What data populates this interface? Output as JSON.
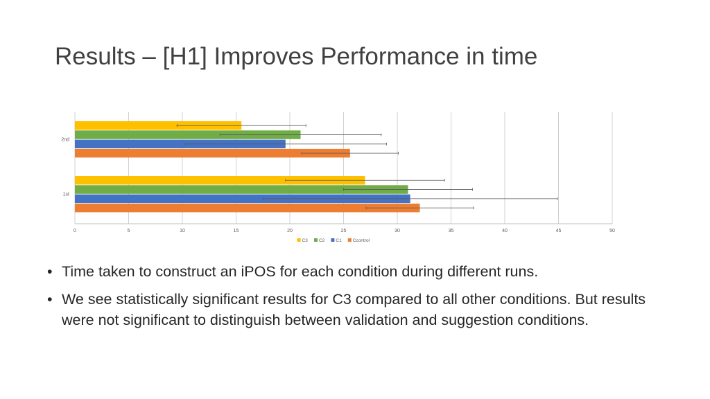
{
  "slide": {
    "title": "Results – [H1] Improves Performance in time",
    "bullets": [
      {
        "bullet_char": "•",
        "text": "Time taken to construct an iPOS for each condition during different runs."
      },
      {
        "bullet_char": "•",
        "text": "We see statistically significant results for C3 compared to all other conditions. But results were not significant to distinguish between validation and suggestion conditions."
      }
    ]
  },
  "chart_data": {
    "type": "bar",
    "orientation": "horizontal",
    "categories": [
      "2nd",
      "1st"
    ],
    "series": [
      {
        "name": "C3",
        "color": "#FFC000",
        "values": [
          15.5,
          27
        ],
        "error": [
          6,
          7.4
        ]
      },
      {
        "name": "C2",
        "color": "#70AD47",
        "values": [
          21,
          31
        ],
        "error": [
          7.5,
          6
        ]
      },
      {
        "name": "C1",
        "color": "#4472C4",
        "values": [
          19.6,
          31.2
        ],
        "error": [
          9.4,
          13.7
        ]
      },
      {
        "name": "Ccontrol",
        "color": "#ED7D31",
        "values": [
          25.6,
          32.1
        ],
        "error": [
          4.5,
          5
        ]
      }
    ],
    "xticks": [
      "0",
      "5",
      "10",
      "15",
      "20",
      "25",
      "30",
      "35",
      "40",
      "45",
      "50"
    ],
    "xlim": [
      0,
      50
    ],
    "grid": true,
    "legend_position": "bottom"
  }
}
